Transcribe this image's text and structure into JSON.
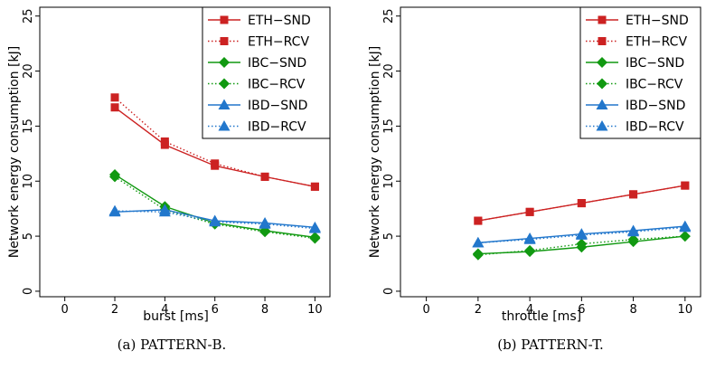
{
  "chart_data": [
    {
      "type": "line",
      "xlabel": "burst [ms]",
      "ylabel": "Network energy consumption [kJ]",
      "xlim": [
        -1,
        10.6
      ],
      "ylim": [
        -0.5,
        25.8
      ],
      "xticks": [
        0,
        2,
        4,
        6,
        8,
        10
      ],
      "yticks": [
        0,
        5,
        10,
        15,
        20,
        25
      ],
      "grid": false,
      "legend_position": "top-right",
      "x": [
        2,
        4,
        6,
        8,
        10
      ],
      "series": [
        {
          "name": "ETH−SND",
          "color": "#cc2222",
          "marker": "square",
          "line": "solid",
          "values": [
            16.7,
            13.3,
            11.4,
            10.4,
            9.5
          ]
        },
        {
          "name": "ETH−RCV",
          "color": "#cc2222",
          "marker": "square",
          "line": "dotted",
          "values": [
            17.6,
            13.6,
            11.6,
            10.4,
            9.5
          ]
        },
        {
          "name": "IBC−SND",
          "color": "#119911",
          "marker": "diamond",
          "line": "solid",
          "values": [
            10.6,
            7.7,
            6.2,
            5.5,
            4.9
          ]
        },
        {
          "name": "IBC−RCV",
          "color": "#119911",
          "marker": "diamond",
          "line": "dotted",
          "values": [
            10.4,
            7.4,
            6.1,
            5.4,
            4.8
          ]
        },
        {
          "name": "IBD−SND",
          "color": "#2277cc",
          "marker": "triangle",
          "line": "solid",
          "values": [
            7.2,
            7.4,
            6.4,
            6.2,
            5.8
          ]
        },
        {
          "name": "IBD−RCV",
          "color": "#2277cc",
          "marker": "triangle",
          "line": "dotted",
          "values": [
            7.3,
            7.2,
            6.3,
            6.1,
            5.7
          ]
        }
      ],
      "caption": "(a) PATTERN-B."
    },
    {
      "type": "line",
      "xlabel": "throttle [ms]",
      "ylabel": "Network energy consumption [kJ]",
      "xlim": [
        -1,
        10.6
      ],
      "ylim": [
        -0.5,
        25.8
      ],
      "xticks": [
        0,
        2,
        4,
        6,
        8,
        10
      ],
      "yticks": [
        0,
        5,
        10,
        15,
        20,
        25
      ],
      "grid": false,
      "legend_position": "top-right",
      "x": [
        2,
        4,
        6,
        8,
        10
      ],
      "series": [
        {
          "name": "ETH−SND",
          "color": "#cc2222",
          "marker": "square",
          "line": "solid",
          "values": [
            6.4,
            7.2,
            8.0,
            8.8,
            9.6
          ]
        },
        {
          "name": "ETH−RCV",
          "color": "#cc2222",
          "marker": "square",
          "line": "dotted",
          "values": [
            6.4,
            7.2,
            8.0,
            8.8,
            9.6
          ]
        },
        {
          "name": "IBC−SND",
          "color": "#119911",
          "marker": "diamond",
          "line": "solid",
          "values": [
            3.4,
            3.6,
            4.0,
            4.5,
            5.0
          ]
        },
        {
          "name": "IBC−RCV",
          "color": "#119911",
          "marker": "diamond",
          "line": "dotted",
          "values": [
            3.3,
            3.7,
            4.3,
            4.7,
            5.0
          ]
        },
        {
          "name": "IBD−SND",
          "color": "#2277cc",
          "marker": "triangle",
          "line": "solid",
          "values": [
            4.4,
            4.8,
            5.2,
            5.5,
            5.9
          ]
        },
        {
          "name": "IBD−RCV",
          "color": "#2277cc",
          "marker": "triangle",
          "line": "dotted",
          "values": [
            4.4,
            4.7,
            5.1,
            5.4,
            5.8
          ]
        }
      ],
      "caption": "(b) PATTERN-T."
    }
  ]
}
